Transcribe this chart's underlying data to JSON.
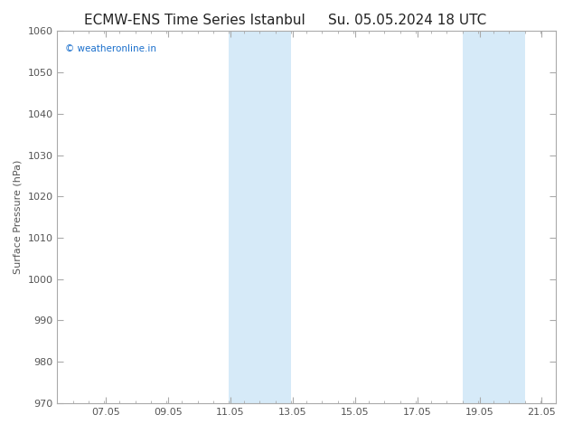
{
  "title_left": "ECMW-ENS Time Series Istanbul",
  "title_right": "Su. 05.05.2024 18 UTC",
  "ylabel": "Surface Pressure (hPa)",
  "ylim": [
    970,
    1060
  ],
  "yticks": [
    970,
    980,
    990,
    1000,
    1010,
    1020,
    1030,
    1040,
    1050,
    1060
  ],
  "xlim_start": 5.5,
  "xlim_end": 21.5,
  "xtick_positions": [
    7.05,
    9.05,
    11.05,
    13.05,
    15.05,
    17.05,
    19.05,
    21.05
  ],
  "xtick_labels": [
    "07.05",
    "09.05",
    "11.05",
    "13.05",
    "15.05",
    "17.05",
    "19.05",
    "21.05"
  ],
  "shade_bands": [
    {
      "xmin": 11.0,
      "xmax": 13.0
    },
    {
      "xmin": 18.5,
      "xmax": 20.5
    }
  ],
  "shade_color": "#d6eaf8",
  "plot_bg_color": "#ffffff",
  "outer_bg_color": "#ffffff",
  "watermark_text": "© weatheronline.in",
  "watermark_color": "#1a6fcc",
  "title_color": "#222222",
  "title_fontsize": 11,
  "axis_label_fontsize": 8,
  "tick_fontsize": 8,
  "watermark_fontsize": 7.5,
  "spine_color": "#aaaaaa",
  "tick_color": "#555555"
}
